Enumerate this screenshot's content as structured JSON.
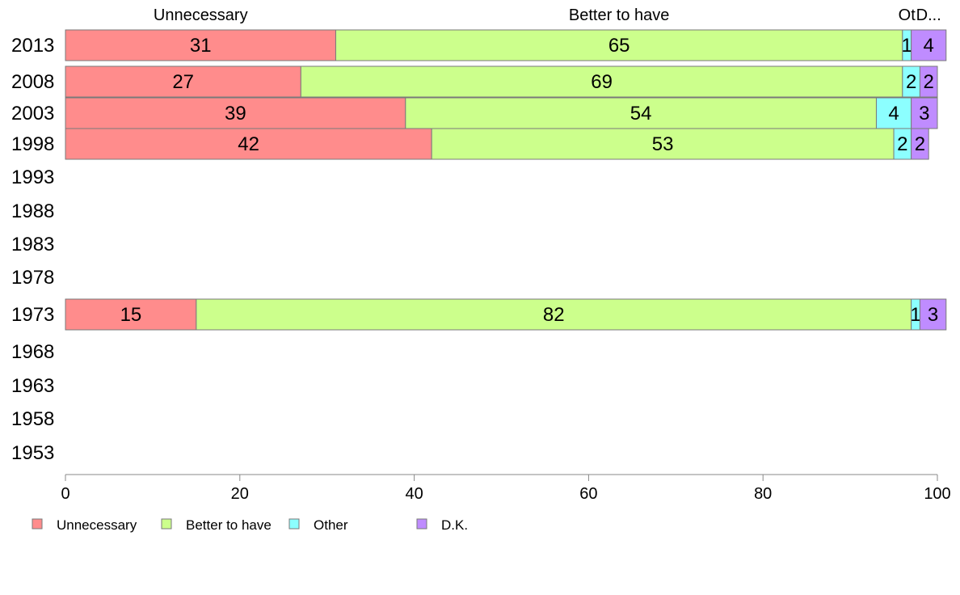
{
  "chart_data": {
    "type": "bar",
    "orientation": "horizontal",
    "stacked": true,
    "categories": [
      "2013",
      "2008",
      "2003",
      "1998",
      "1993",
      "1988",
      "1983",
      "1978",
      "1973",
      "1968",
      "1963",
      "1958",
      "1953"
    ],
    "series": [
      {
        "name": "Unnecessary",
        "color": "#ff8c8c",
        "values": [
          31,
          27,
          39,
          42,
          null,
          null,
          null,
          null,
          15,
          null,
          null,
          null,
          null
        ],
        "header_label": "Unnecessary"
      },
      {
        "name": "Better to have",
        "color": "#ccff8c",
        "values": [
          65,
          69,
          54,
          53,
          null,
          null,
          null,
          null,
          82,
          null,
          null,
          null,
          null
        ],
        "header_label": "Better to have"
      },
      {
        "name": "Other",
        "color": "#8cffff",
        "values": [
          1,
          2,
          4,
          2,
          null,
          null,
          null,
          null,
          1,
          null,
          null,
          null,
          null
        ],
        "header_label": "Ot"
      },
      {
        "name": "D.K.",
        "color": "#bf8cff",
        "values": [
          4,
          2,
          3,
          2,
          null,
          null,
          null,
          null,
          3,
          null,
          null,
          null,
          null
        ],
        "header_label": "D..."
      }
    ],
    "xlim": [
      0,
      100
    ],
    "xticks": [
      0,
      20,
      40,
      60,
      80,
      100
    ],
    "legend_position": "bottom",
    "grid": false
  }
}
